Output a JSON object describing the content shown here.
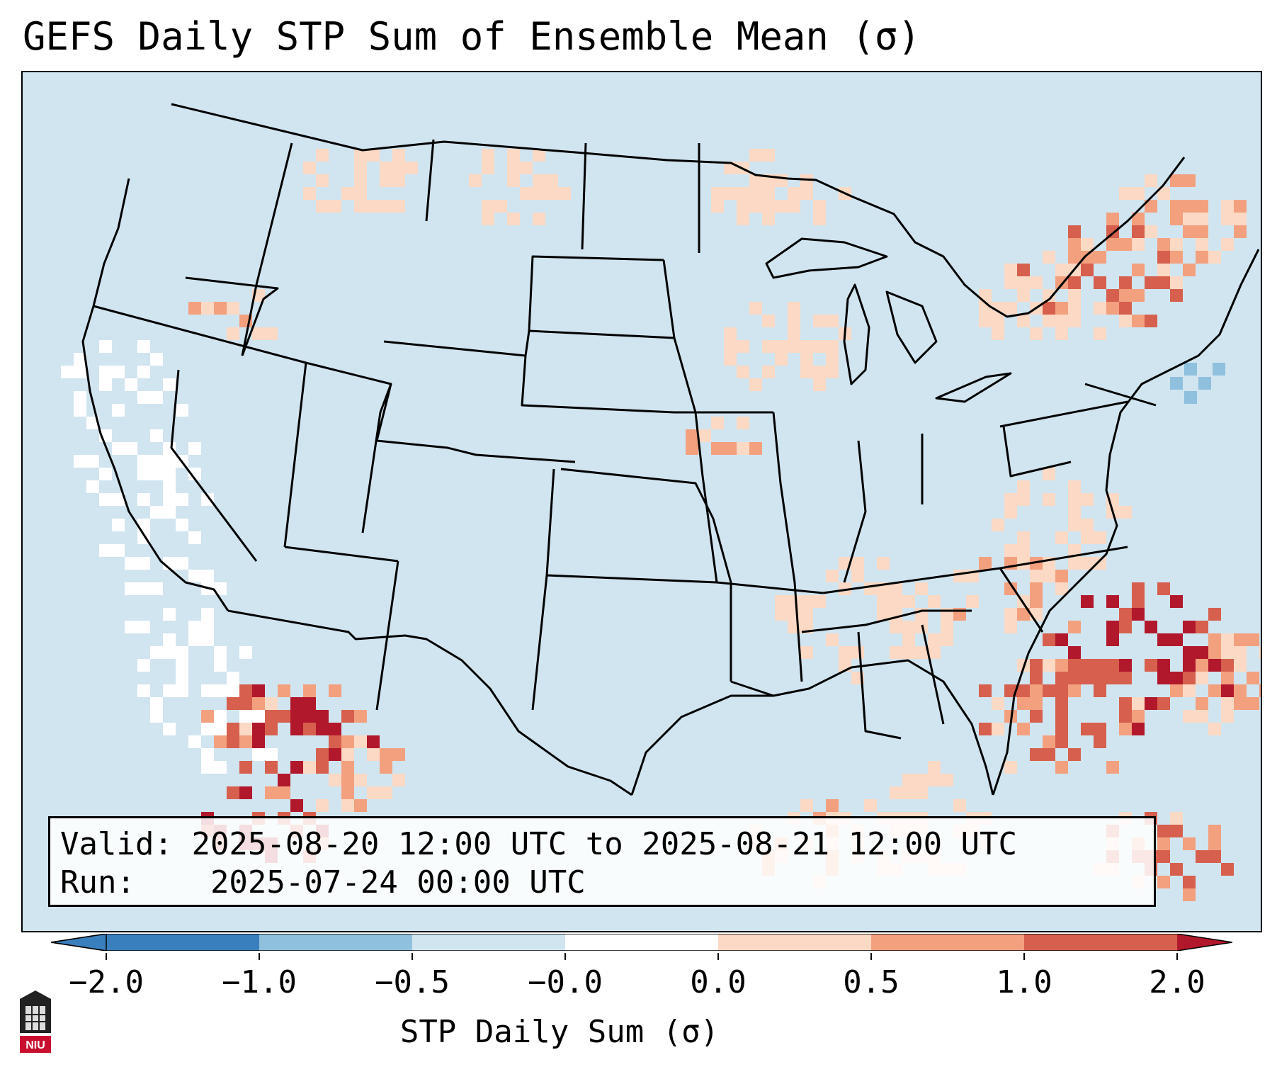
{
  "title": "GEFS Daily STP Sum of Ensemble Mean (σ)",
  "info": {
    "valid_label": "Valid:",
    "valid_value": "2025-08-20 12:00 UTC to 2025-08-21 12:00 UTC",
    "run_label": "Run:",
    "run_value": "2025-07-24 00:00 UTC"
  },
  "colorbar": {
    "label": "STP Daily Sum (σ)",
    "ticks": [
      "−2.0",
      "−1.0",
      "−0.5",
      "−0.0",
      "0.0",
      "0.5",
      "1.0",
      "2.0"
    ],
    "bins": [
      {
        "range": "< −2.0",
        "color": "#3a7fbd"
      },
      {
        "range": "−2.0 to −1.0",
        "color": "#3a7fbd"
      },
      {
        "range": "−1.0 to −0.5",
        "color": "#8fc0dd"
      },
      {
        "range": "−0.5 to −0.0",
        "color": "#d1e5f0"
      },
      {
        "range": "−0.0 to 0.0",
        "color": "#ffffff"
      },
      {
        "range": "0.0 to 0.5",
        "color": "#fbd9c4"
      },
      {
        "range": "0.5 to 1.0",
        "color": "#f3a07f"
      },
      {
        "range": "1.0 to 2.0",
        "color": "#d6604d"
      },
      {
        "range": "> 2.0",
        "color": "#b2182b"
      }
    ]
  },
  "map": {
    "background_color": "#d1e5f0",
    "region": "Continental United States"
  },
  "logo": {
    "text": "NIU",
    "color": "#c8102e"
  }
}
